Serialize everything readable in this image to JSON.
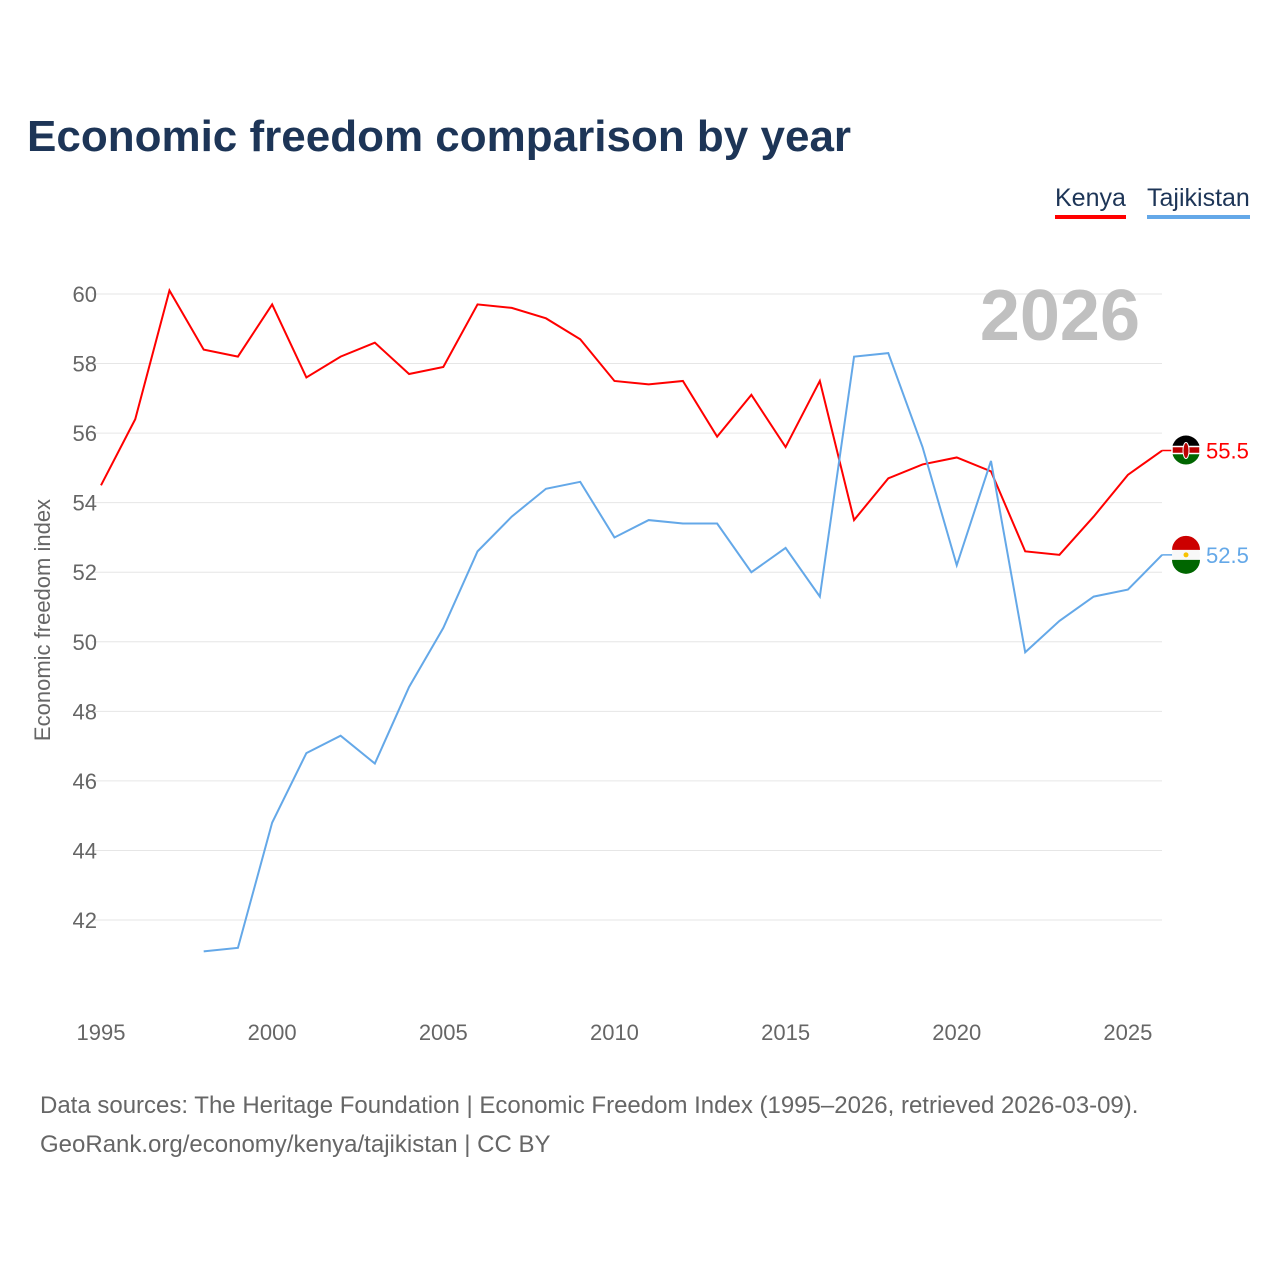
{
  "title": "Economic freedom comparison by year",
  "footer": {
    "line1": "Data sources: The Heritage Foundation | Economic Freedom Index (1995–2026, retrieved 2026-03-09).",
    "line2": "GeoRank.org/economy/kenya/tajikistan | CC BY"
  },
  "chart_data": {
    "type": "line",
    "title": "Economic freedom comparison by year",
    "xlabel": "",
    "ylabel": "Economic freedom index",
    "year_label": "2026",
    "xlim": [
      1995,
      2026
    ],
    "ylim": [
      40,
      61
    ],
    "xticks": [
      1995,
      2000,
      2005,
      2010,
      2015,
      2020,
      2025
    ],
    "yticks": [
      42,
      44,
      46,
      48,
      50,
      52,
      54,
      56,
      58,
      60
    ],
    "grid": true,
    "legend_position": "top-right",
    "series": [
      {
        "name": "Kenya",
        "color": "#ff0000",
        "end_label": "55.5",
        "x": [
          1995,
          1996,
          1997,
          1998,
          1999,
          2000,
          2001,
          2002,
          2003,
          2004,
          2005,
          2006,
          2007,
          2008,
          2009,
          2010,
          2011,
          2012,
          2013,
          2014,
          2015,
          2016,
          2017,
          2018,
          2019,
          2020,
          2021,
          2022,
          2023,
          2024,
          2025,
          2026
        ],
        "values": [
          54.5,
          56.4,
          60.1,
          58.4,
          58.2,
          59.7,
          57.6,
          58.2,
          58.6,
          57.7,
          57.9,
          59.7,
          59.6,
          59.3,
          58.7,
          57.5,
          57.4,
          57.5,
          55.9,
          57.1,
          55.6,
          57.5,
          53.5,
          54.7,
          55.1,
          55.3,
          54.9,
          52.6,
          52.5,
          53.6,
          54.8,
          55.5
        ]
      },
      {
        "name": "Tajikistan",
        "color": "#64a8e8",
        "end_label": "52.5",
        "x": [
          1998,
          1999,
          2000,
          2001,
          2002,
          2003,
          2004,
          2005,
          2006,
          2007,
          2008,
          2009,
          2010,
          2011,
          2012,
          2013,
          2014,
          2015,
          2016,
          2017,
          2018,
          2019,
          2020,
          2021,
          2022,
          2023,
          2024,
          2025,
          2026
        ],
        "values": [
          41.1,
          41.2,
          44.8,
          46.8,
          47.3,
          46.5,
          48.7,
          50.4,
          52.6,
          53.6,
          54.4,
          54.6,
          53.0,
          53.5,
          53.4,
          53.4,
          52.0,
          52.7,
          51.3,
          58.2,
          58.3,
          55.6,
          52.2,
          55.2,
          49.7,
          50.6,
          51.3,
          51.5,
          52.5
        ]
      }
    ]
  }
}
